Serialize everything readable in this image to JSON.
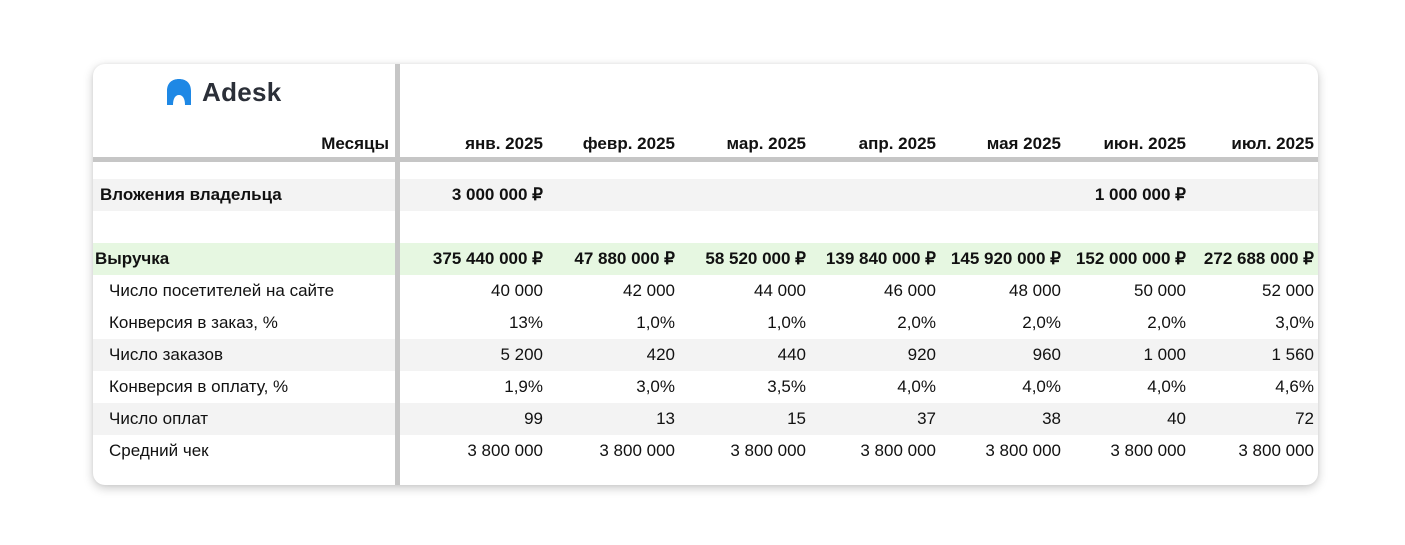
{
  "brand": {
    "name": "Adesk",
    "logo_color": "#1e88e5"
  },
  "header": {
    "label": "Месяцы",
    "months": [
      "янв. 2025",
      "февр. 2025",
      "мар. 2025",
      "апр. 2025",
      "мая 2025",
      "июн. 2025",
      "июл. 2025"
    ]
  },
  "owner": {
    "label": "Вложения владельца",
    "values": [
      "3 000 000 ₽",
      "",
      "",
      "",
      "",
      "1 000 000 ₽",
      ""
    ]
  },
  "revenue": {
    "label": "Выручка",
    "values": [
      "375 440 000 ₽",
      "47 880 000 ₽",
      "58 520 000 ₽",
      "139 840 000 ₽",
      "145 920 000 ₽",
      "152 000 000 ₽",
      "272 688 000 ₽"
    ],
    "row_color": "#e6f7e1"
  },
  "metrics": [
    {
      "label": "Число посетителей на сайте",
      "values": [
        "40 000",
        "42 000",
        "44 000",
        "46 000",
        "48 000",
        "50 000",
        "52 000"
      ]
    },
    {
      "label": "Конверсия в заказ, %",
      "values": [
        "13%",
        "1,0%",
        "1,0%",
        "2,0%",
        "2,0%",
        "2,0%",
        "3,0%"
      ]
    },
    {
      "label": "Число заказов",
      "values": [
        "5 200",
        "420",
        "440",
        "920",
        "960",
        "1 000",
        "1 560"
      ]
    },
    {
      "label": "Конверсия в оплату, %",
      "values": [
        "1,9%",
        "3,0%",
        "3,5%",
        "4,0%",
        "4,0%",
        "4,0%",
        "4,6%"
      ]
    },
    {
      "label": "Число оплат",
      "values": [
        "99",
        "13",
        "15",
        "37",
        "38",
        "40",
        "72"
      ]
    },
    {
      "label": "Средний чек",
      "values": [
        "3 800 000",
        "3 800 000",
        "3 800 000",
        "3 800 000",
        "3 800 000",
        "3 800 000",
        "3 800 000"
      ]
    }
  ]
}
